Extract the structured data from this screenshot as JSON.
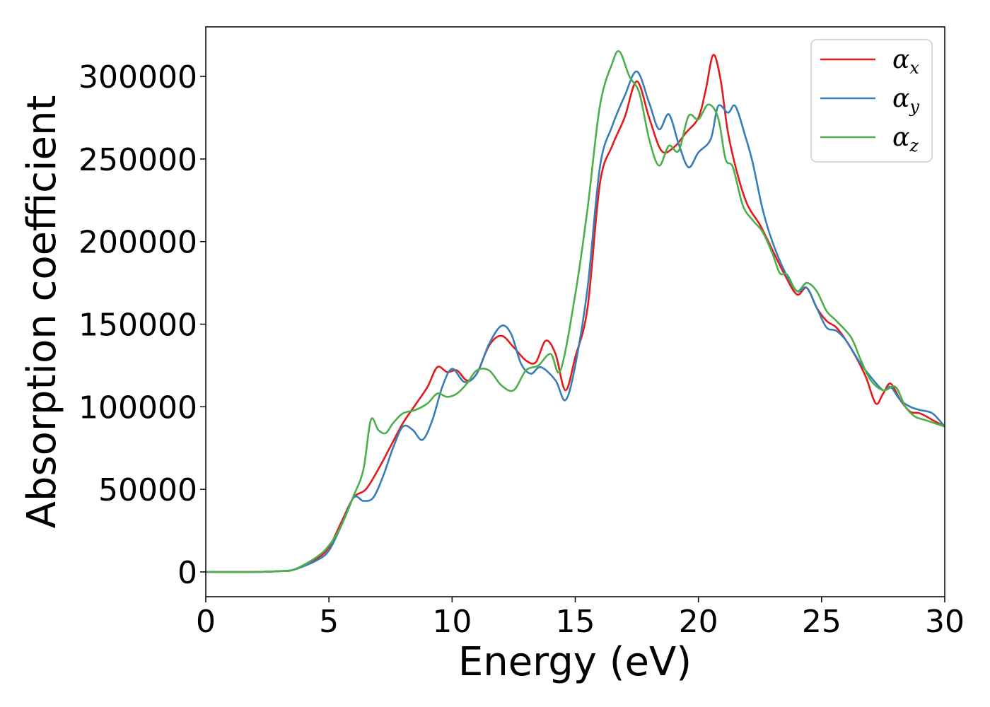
{
  "chart_data": {
    "type": "line",
    "xlabel": "Energy (eV)",
    "ylabel": "Absorption coefficient",
    "xlim": [
      0,
      30
    ],
    "ylim": [
      -15000,
      330000
    ],
    "xticks": [
      0,
      5,
      10,
      15,
      20,
      25,
      30
    ],
    "xtick_labels": [
      "0",
      "5",
      "10",
      "15",
      "20",
      "25",
      "30"
    ],
    "yticks": [
      0,
      50000,
      100000,
      150000,
      200000,
      250000,
      300000
    ],
    "ytick_labels": [
      "0",
      "50000",
      "100000",
      "150000",
      "200000",
      "250000",
      "300000"
    ],
    "grid": false,
    "legend_position": "top-right",
    "series": [
      {
        "name": "α_x",
        "name_base": "α",
        "name_sub": "x",
        "color": "#e41a1c",
        "points": [
          [
            0,
            0
          ],
          [
            2,
            0
          ],
          [
            3,
            500
          ],
          [
            3.6,
            1500
          ],
          [
            4.5,
            8000
          ],
          [
            5,
            15000
          ],
          [
            5.5,
            30000
          ],
          [
            6,
            45000
          ],
          [
            6.5,
            50000
          ],
          [
            7,
            62000
          ],
          [
            7.5,
            76000
          ],
          [
            8,
            90000
          ],
          [
            8.5,
            101000
          ],
          [
            9,
            112000
          ],
          [
            9.4,
            124000
          ],
          [
            9.8,
            121000
          ],
          [
            10.2,
            122000
          ],
          [
            10.6,
            116000
          ],
          [
            11,
            120000
          ],
          [
            11.5,
            137000
          ],
          [
            12,
            143000
          ],
          [
            12.5,
            136000
          ],
          [
            13,
            128000
          ],
          [
            13.4,
            127000
          ],
          [
            13.8,
            140000
          ],
          [
            14.2,
            132000
          ],
          [
            14.6,
            110000
          ],
          [
            15,
            130000
          ],
          [
            15.5,
            160000
          ],
          [
            16,
            235000
          ],
          [
            16.5,
            258000
          ],
          [
            17,
            275000
          ],
          [
            17.5,
            297000
          ],
          [
            18,
            275000
          ],
          [
            18.5,
            255000
          ],
          [
            19,
            257000
          ],
          [
            19.5,
            266000
          ],
          [
            20,
            275000
          ],
          [
            20.3,
            292000
          ],
          [
            20.6,
            313000
          ],
          [
            20.9,
            298000
          ],
          [
            21.2,
            266000
          ],
          [
            21.6,
            240000
          ],
          [
            22,
            222000
          ],
          [
            22.5,
            210000
          ],
          [
            23,
            195000
          ],
          [
            23.5,
            180000
          ],
          [
            24,
            168000
          ],
          [
            24.4,
            172000
          ],
          [
            24.8,
            160000
          ],
          [
            25.2,
            152000
          ],
          [
            25.6,
            148000
          ],
          [
            26,
            140000
          ],
          [
            26.4,
            130000
          ],
          [
            26.8,
            118000
          ],
          [
            27.2,
            102000
          ],
          [
            27.5,
            108000
          ],
          [
            27.8,
            114000
          ],
          [
            28.2,
            104000
          ],
          [
            28.6,
            97000
          ],
          [
            29,
            96000
          ],
          [
            29.5,
            92000
          ],
          [
            30,
            88000
          ]
        ]
      },
      {
        "name": "α_y",
        "name_base": "α",
        "name_sub": "y",
        "color": "#377eb8",
        "points": [
          [
            0,
            0
          ],
          [
            2,
            0
          ],
          [
            3,
            500
          ],
          [
            3.6,
            1500
          ],
          [
            4.5,
            7000
          ],
          [
            5,
            13000
          ],
          [
            5.5,
            28000
          ],
          [
            6,
            45000
          ],
          [
            6.4,
            43000
          ],
          [
            6.8,
            45000
          ],
          [
            7.2,
            58000
          ],
          [
            7.6,
            75000
          ],
          [
            8,
            88000
          ],
          [
            8.4,
            86000
          ],
          [
            8.8,
            80000
          ],
          [
            9.2,
            92000
          ],
          [
            9.6,
            112000
          ],
          [
            10,
            123000
          ],
          [
            10.5,
            115000
          ],
          [
            11,
            120000
          ],
          [
            11.5,
            138000
          ],
          [
            12,
            149000
          ],
          [
            12.4,
            144000
          ],
          [
            12.8,
            126000
          ],
          [
            13.2,
            120000
          ],
          [
            13.6,
            124000
          ],
          [
            14.2,
            116000
          ],
          [
            14.6,
            104000
          ],
          [
            15,
            125000
          ],
          [
            15.5,
            172000
          ],
          [
            16,
            245000
          ],
          [
            16.5,
            270000
          ],
          [
            17,
            288000
          ],
          [
            17.5,
            303000
          ],
          [
            18,
            284000
          ],
          [
            18.4,
            268000
          ],
          [
            18.8,
            277000
          ],
          [
            19.2,
            259000
          ],
          [
            19.6,
            245000
          ],
          [
            20,
            254000
          ],
          [
            20.5,
            262000
          ],
          [
            20.8,
            282000
          ],
          [
            21.2,
            278000
          ],
          [
            21.5,
            282000
          ],
          [
            21.9,
            264000
          ],
          [
            22.2,
            248000
          ],
          [
            22.6,
            220000
          ],
          [
            23,
            200000
          ],
          [
            23.5,
            182000
          ],
          [
            24,
            170000
          ],
          [
            24.4,
            172000
          ],
          [
            24.8,
            160000
          ],
          [
            25.2,
            148000
          ],
          [
            25.6,
            146000
          ],
          [
            26,
            140000
          ],
          [
            26.5,
            128000
          ],
          [
            27,
            118000
          ],
          [
            27.5,
            110000
          ],
          [
            27.8,
            112000
          ],
          [
            28.2,
            104000
          ],
          [
            28.6,
            100000
          ],
          [
            29,
            98000
          ],
          [
            29.5,
            96000
          ],
          [
            30,
            88000
          ]
        ]
      },
      {
        "name": "α_z",
        "name_base": "α",
        "name_sub": "z",
        "color": "#4daf4a",
        "points": [
          [
            0,
            0
          ],
          [
            2,
            0
          ],
          [
            3,
            500
          ],
          [
            3.6,
            1500
          ],
          [
            4.5,
            9000
          ],
          [
            5,
            16000
          ],
          [
            5.5,
            28000
          ],
          [
            6,
            46000
          ],
          [
            6.4,
            62000
          ],
          [
            6.7,
            92000
          ],
          [
            7,
            86000
          ],
          [
            7.3,
            84000
          ],
          [
            7.6,
            90000
          ],
          [
            8,
            96000
          ],
          [
            8.5,
            98000
          ],
          [
            9,
            102000
          ],
          [
            9.4,
            108000
          ],
          [
            9.8,
            106000
          ],
          [
            10.2,
            108000
          ],
          [
            10.6,
            114000
          ],
          [
            11,
            122000
          ],
          [
            11.5,
            122000
          ],
          [
            12,
            113000
          ],
          [
            12.5,
            110000
          ],
          [
            13,
            122000
          ],
          [
            13.5,
            125000
          ],
          [
            14,
            132000
          ],
          [
            14.4,
            122000
          ],
          [
            15,
            168000
          ],
          [
            15.5,
            220000
          ],
          [
            16,
            282000
          ],
          [
            16.5,
            308000
          ],
          [
            16.8,
            315000
          ],
          [
            17.2,
            300000
          ],
          [
            17.6,
            290000
          ],
          [
            18,
            262000
          ],
          [
            18.4,
            246000
          ],
          [
            18.8,
            258000
          ],
          [
            19.2,
            255000
          ],
          [
            19.6,
            276000
          ],
          [
            20,
            274000
          ],
          [
            20.4,
            283000
          ],
          [
            20.8,
            275000
          ],
          [
            21.1,
            250000
          ],
          [
            21.4,
            245000
          ],
          [
            21.8,
            222000
          ],
          [
            22.2,
            213000
          ],
          [
            22.6,
            206000
          ],
          [
            23,
            193000
          ],
          [
            23.3,
            181000
          ],
          [
            23.6,
            180000
          ],
          [
            24,
            170000
          ],
          [
            24.4,
            175000
          ],
          [
            24.8,
            170000
          ],
          [
            25.2,
            158000
          ],
          [
            25.6,
            152000
          ],
          [
            26.2,
            142000
          ],
          [
            26.6,
            128000
          ],
          [
            27,
            116000
          ],
          [
            27.5,
            110000
          ],
          [
            28,
            112000
          ],
          [
            28.4,
            100000
          ],
          [
            28.8,
            94000
          ],
          [
            29.2,
            92000
          ],
          [
            30,
            88000
          ]
        ]
      }
    ]
  }
}
